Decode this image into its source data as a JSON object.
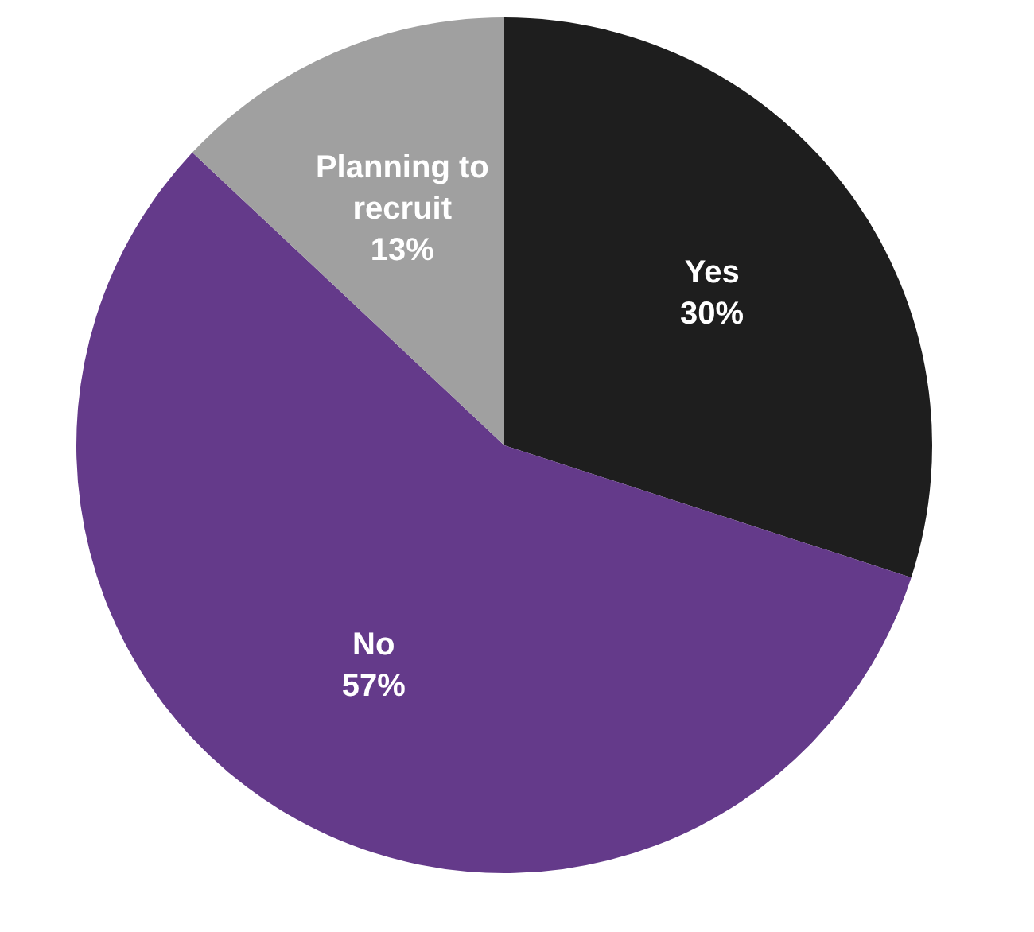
{
  "chart_data": {
    "type": "pie",
    "categories": [
      "Yes",
      "No",
      "Planning to recruit"
    ],
    "values": [
      30,
      57,
      13
    ],
    "value_labels": [
      "30%",
      "57%",
      "13%"
    ],
    "colors": [
      "#1e1e1e",
      "#643a8a",
      "#a0a0a0"
    ],
    "legend": false
  }
}
